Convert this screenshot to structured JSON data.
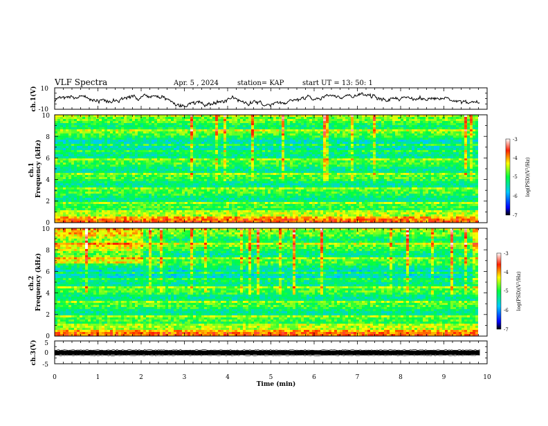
{
  "header": {
    "title": "VLF Spectra",
    "date": "Apr. 5 , 2024",
    "station": "station= KAP",
    "start": "start UT = 13: 50: 1"
  },
  "chart_data": [
    {
      "id": "ch1-waveform",
      "type": "line",
      "ylabel": "ch.1(V)",
      "ylim": [
        -10,
        10
      ],
      "yticks": [
        "10",
        "-10"
      ],
      "xlim": [
        0,
        10
      ]
    },
    {
      "id": "ch1-spectrogram",
      "type": "heatmap",
      "ylabel": "ch.1\nFrequency (kHz)",
      "ylabel_lines": [
        "ch.1",
        "Frequency (kHz)"
      ],
      "ylim": [
        0,
        10
      ],
      "yticks": [
        "0",
        "2",
        "4",
        "6",
        "8",
        "10"
      ],
      "xlim": [
        0,
        9.83
      ],
      "colorbar": {
        "label": "log(PSD)(V²/Hz)",
        "range": [
          -7,
          -3
        ],
        "ticks": [
          "-3",
          "-4",
          "-5",
          "-6",
          "-7"
        ]
      }
    },
    {
      "id": "ch2-spectrogram",
      "type": "heatmap",
      "ylabel": "ch.2\nFrequency (kHz)",
      "ylabel_lines": [
        "ch.2",
        "Frequency (kHz)"
      ],
      "ylim": [
        0,
        10
      ],
      "yticks": [
        "0",
        "2",
        "4",
        "6",
        "8",
        "10"
      ],
      "xlim": [
        0,
        9.83
      ],
      "colorbar": {
        "label": "log(PSD)(V²/Hz)",
        "range": [
          -7,
          -3
        ],
        "ticks": [
          "-3",
          "-4",
          "-5",
          "-6",
          "-7"
        ]
      }
    },
    {
      "id": "ch3-waveform",
      "type": "line",
      "ylabel": "ch.3(V)",
      "ylim": [
        -5,
        5
      ],
      "yticks": [
        "5",
        "0",
        "-5"
      ],
      "xlim": [
        0,
        10
      ]
    }
  ],
  "xaxis": {
    "label": "Time (min)",
    "ticks": [
      "0",
      "1",
      "2",
      "3",
      "4",
      "5",
      "6",
      "7",
      "8",
      "9",
      "10"
    ]
  }
}
